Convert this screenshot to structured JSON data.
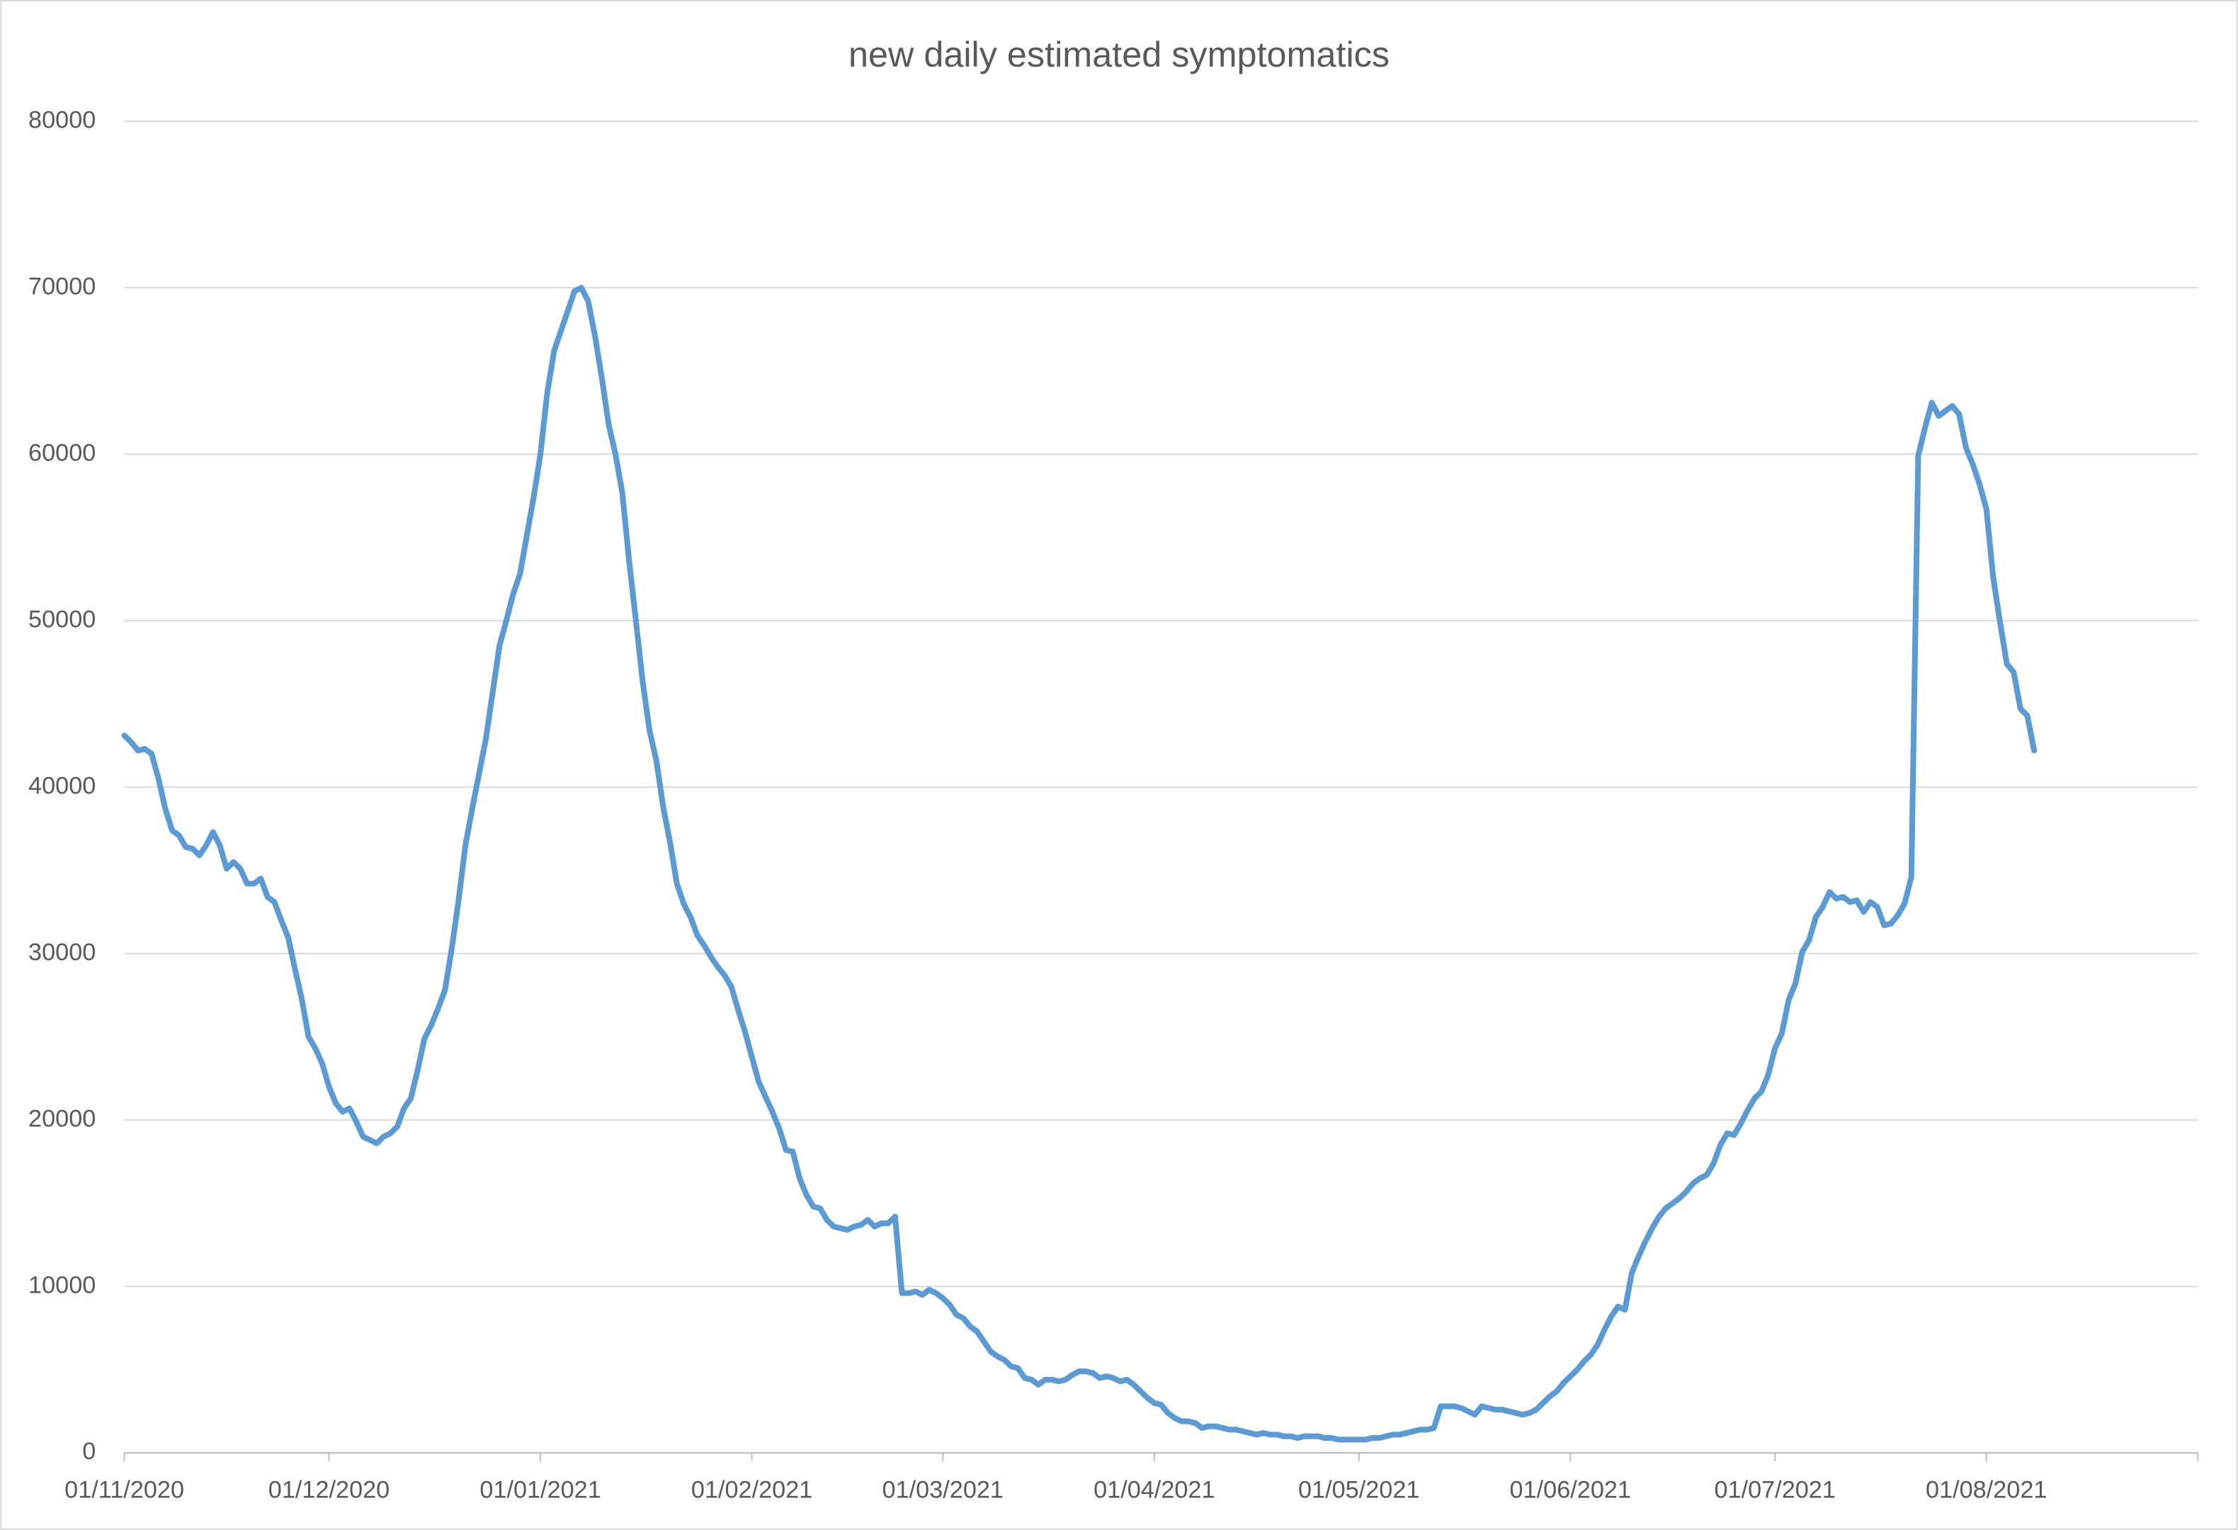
{
  "chart_data": {
    "type": "line",
    "title": "new daily estimated symptomatics",
    "color": "#5b9bd5",
    "grid": true,
    "xlim": [
      "01/11/2020",
      "01/09/2021"
    ],
    "xticks": [
      "01/11/2020",
      "01/12/2020",
      "01/01/2021",
      "01/02/2021",
      "01/03/2021",
      "01/04/2021",
      "01/05/2021",
      "01/06/2021",
      "01/07/2021",
      "01/08/2021"
    ],
    "ylim": [
      0,
      80000
    ],
    "yticks": [
      0,
      10000,
      20000,
      30000,
      40000,
      50000,
      60000,
      70000,
      80000
    ],
    "x": [
      "01/11/2020",
      "02/11/2020",
      "03/11/2020",
      "04/11/2020",
      "05/11/2020",
      "06/11/2020",
      "07/11/2020",
      "08/11/2020",
      "09/11/2020",
      "10/11/2020",
      "11/11/2020",
      "12/11/2020",
      "13/11/2020",
      "14/11/2020",
      "15/11/2020",
      "16/11/2020",
      "17/11/2020",
      "18/11/2020",
      "19/11/2020",
      "20/11/2020",
      "21/11/2020",
      "22/11/2020",
      "23/11/2020",
      "24/11/2020",
      "25/11/2020",
      "26/11/2020",
      "27/11/2020",
      "28/11/2020",
      "29/11/2020",
      "30/11/2020",
      "01/12/2020",
      "02/12/2020",
      "03/12/2020",
      "04/12/2020",
      "05/12/2020",
      "06/12/2020",
      "07/12/2020",
      "08/12/2020",
      "09/12/2020",
      "10/12/2020",
      "11/12/2020",
      "12/12/2020",
      "13/12/2020",
      "14/12/2020",
      "15/12/2020",
      "16/12/2020",
      "17/12/2020",
      "18/12/2020",
      "19/12/2020",
      "20/12/2020",
      "21/12/2020",
      "22/12/2020",
      "23/12/2020",
      "24/12/2020",
      "25/12/2020",
      "26/12/2020",
      "27/12/2020",
      "28/12/2020",
      "29/12/2020",
      "30/12/2020",
      "31/12/2020",
      "01/01/2021",
      "02/01/2021",
      "03/01/2021",
      "04/01/2021",
      "05/01/2021",
      "06/01/2021",
      "07/01/2021",
      "08/01/2021",
      "09/01/2021",
      "10/01/2021",
      "11/01/2021",
      "12/01/2021",
      "13/01/2021",
      "14/01/2021",
      "15/01/2021",
      "16/01/2021",
      "17/01/2021",
      "18/01/2021",
      "19/01/2021",
      "20/01/2021",
      "21/01/2021",
      "22/01/2021",
      "23/01/2021",
      "24/01/2021",
      "25/01/2021",
      "26/01/2021",
      "27/01/2021",
      "28/01/2021",
      "29/01/2021",
      "30/01/2021",
      "31/01/2021",
      "01/02/2021",
      "02/02/2021",
      "03/02/2021",
      "04/02/2021",
      "05/02/2021",
      "06/02/2021",
      "07/02/2021",
      "08/02/2021",
      "09/02/2021",
      "10/02/2021",
      "11/02/2021",
      "12/02/2021",
      "13/02/2021",
      "14/02/2021",
      "15/02/2021",
      "16/02/2021",
      "17/02/2021",
      "18/02/2021",
      "19/02/2021",
      "20/02/2021",
      "21/02/2021",
      "22/02/2021",
      "23/02/2021",
      "24/02/2021",
      "25/02/2021",
      "26/02/2021",
      "27/02/2021",
      "28/02/2021",
      "01/03/2021",
      "02/03/2021",
      "03/03/2021",
      "04/03/2021",
      "05/03/2021",
      "06/03/2021",
      "07/03/2021",
      "08/03/2021",
      "09/03/2021",
      "10/03/2021",
      "11/03/2021",
      "12/03/2021",
      "13/03/2021",
      "14/03/2021",
      "15/03/2021",
      "16/03/2021",
      "17/03/2021",
      "18/03/2021",
      "19/03/2021",
      "20/03/2021",
      "21/03/2021",
      "22/03/2021",
      "23/03/2021",
      "24/03/2021",
      "25/03/2021",
      "26/03/2021",
      "27/03/2021",
      "28/03/2021",
      "29/03/2021",
      "30/03/2021",
      "31/03/2021",
      "01/04/2021",
      "02/04/2021",
      "03/04/2021",
      "04/04/2021",
      "05/04/2021",
      "06/04/2021",
      "07/04/2021",
      "08/04/2021",
      "09/04/2021",
      "10/04/2021",
      "11/04/2021",
      "12/04/2021",
      "13/04/2021",
      "14/04/2021",
      "15/04/2021",
      "16/04/2021",
      "17/04/2021",
      "18/04/2021",
      "19/04/2021",
      "20/04/2021",
      "21/04/2021",
      "22/04/2021",
      "23/04/2021",
      "24/04/2021",
      "25/04/2021",
      "26/04/2021",
      "27/04/2021",
      "28/04/2021",
      "29/04/2021",
      "30/04/2021",
      "01/05/2021",
      "02/05/2021",
      "03/05/2021",
      "04/05/2021",
      "05/05/2021",
      "06/05/2021",
      "07/05/2021",
      "08/05/2021",
      "09/05/2021",
      "10/05/2021",
      "11/05/2021",
      "12/05/2021",
      "13/05/2021",
      "14/05/2021",
      "15/05/2021",
      "16/05/2021",
      "17/05/2021",
      "18/05/2021",
      "19/05/2021",
      "20/05/2021",
      "21/05/2021",
      "22/05/2021",
      "23/05/2021",
      "24/05/2021",
      "25/05/2021",
      "26/05/2021",
      "27/05/2021",
      "28/05/2021",
      "29/05/2021",
      "30/05/2021",
      "31/05/2021",
      "01/06/2021",
      "02/06/2021",
      "03/06/2021",
      "04/06/2021",
      "05/06/2021",
      "06/06/2021",
      "07/06/2021",
      "08/06/2021",
      "09/06/2021",
      "10/06/2021",
      "11/06/2021",
      "12/06/2021",
      "13/06/2021",
      "14/06/2021",
      "15/06/2021",
      "16/06/2021",
      "17/06/2021",
      "18/06/2021",
      "19/06/2021",
      "20/06/2021",
      "21/06/2021",
      "22/06/2021",
      "23/06/2021",
      "24/06/2021",
      "25/06/2021",
      "26/06/2021",
      "27/06/2021",
      "28/06/2021",
      "29/06/2021",
      "30/06/2021",
      "01/07/2021",
      "02/07/2021",
      "03/07/2021",
      "04/07/2021",
      "05/07/2021",
      "06/07/2021",
      "07/07/2021",
      "08/07/2021",
      "09/07/2021",
      "10/07/2021",
      "11/07/2021",
      "12/07/2021",
      "13/07/2021",
      "14/07/2021",
      "15/07/2021",
      "16/07/2021",
      "17/07/2021",
      "18/07/2021",
      "19/07/2021",
      "20/07/2021",
      "21/07/2021",
      "22/07/2021",
      "23/07/2021",
      "24/07/2021",
      "25/07/2021",
      "26/07/2021",
      "27/07/2021",
      "28/07/2021",
      "29/07/2021",
      "30/07/2021",
      "31/07/2021",
      "01/08/2021",
      "02/08/2021",
      "03/08/2021",
      "04/08/2021",
      "05/08/2021",
      "06/08/2021",
      "07/08/2021",
      "08/08/2021"
    ],
    "values": [
      43100,
      42700,
      42200,
      42300,
      42000,
      40500,
      38700,
      37400,
      37100,
      36400,
      36300,
      35900,
      36500,
      37300,
      36500,
      35100,
      35500,
      35100,
      34200,
      34200,
      34500,
      33400,
      33100,
      32000,
      31000,
      29100,
      27300,
      25000,
      24300,
      23400,
      22000,
      21000,
      20500,
      20700,
      19900,
      19000,
      18800,
      18600,
      19000,
      19200,
      19600,
      20700,
      21300,
      23000,
      24900,
      25700,
      26700,
      27800,
      30300,
      33200,
      36500,
      38700,
      40800,
      42900,
      45700,
      48500,
      50000,
      51600,
      52800,
      55100,
      57400,
      60000,
      63700,
      66200,
      67400,
      68600,
      69800,
      70000,
      69200,
      67100,
      64600,
      61800,
      60000,
      57700,
      53600,
      50000,
      46300,
      43400,
      41600,
      38800,
      36700,
      34200,
      33000,
      32200,
      31100,
      30500,
      29800,
      29200,
      28700,
      28000,
      26600,
      25300,
      23800,
      22300,
      21400,
      20500,
      19500,
      18200,
      18100,
      16500,
      15500,
      14800,
      14700,
      14000,
      13600,
      13500,
      13400,
      13600,
      13700,
      14000,
      13600,
      13800,
      13800,
      14200,
      9600,
      9600,
      9700,
      9500,
      9800,
      9600,
      9300,
      8900,
      8300,
      8100,
      7600,
      7300,
      6700,
      6100,
      5800,
      5600,
      5200,
      5100,
      4500,
      4400,
      4100,
      4400,
      4400,
      4300,
      4400,
      4700,
      4900,
      4900,
      4800,
      4500,
      4600,
      4500,
      4300,
      4400,
      4100,
      3700,
      3300,
      3000,
      2900,
      2400,
      2100,
      1900,
      1900,
      1800,
      1500,
      1600,
      1600,
      1500,
      1400,
      1400,
      1300,
      1200,
      1100,
      1200,
      1100,
      1100,
      1000,
      1000,
      900,
      1000,
      1000,
      1000,
      900,
      900,
      800,
      800,
      800,
      800,
      800,
      900,
      900,
      1000,
      1100,
      1100,
      1200,
      1300,
      1400,
      1400,
      1500,
      2800,
      2800,
      2800,
      2700,
      2500,
      2300,
      2800,
      2700,
      2600,
      2600,
      2500,
      2400,
      2300,
      2400,
      2600,
      3000,
      3400,
      3700,
      4200,
      4600,
      5000,
      5500,
      5900,
      6500,
      7400,
      8200,
      8800,
      8600,
      10800,
      11800,
      12700,
      13500,
      14200,
      14700,
      15000,
      15300,
      15700,
      16200,
      16500,
      16700,
      17400,
      18500,
      19200,
      19100,
      19800,
      20600,
      21300,
      21700,
      22700,
      24300,
      25200,
      27200,
      28200,
      30100,
      30800,
      32200,
      32800,
      33700,
      33300,
      33400,
      33100,
      33200,
      32500,
      33100,
      32800,
      31700,
      31800,
      32300,
      33000,
      34600,
      59900,
      61600,
      63100,
      62300,
      62600,
      62900,
      62400,
      60400,
      59400,
      58200,
      56700,
      52600,
      49900,
      47400,
      46900,
      44700,
      44300,
      42200
    ]
  }
}
